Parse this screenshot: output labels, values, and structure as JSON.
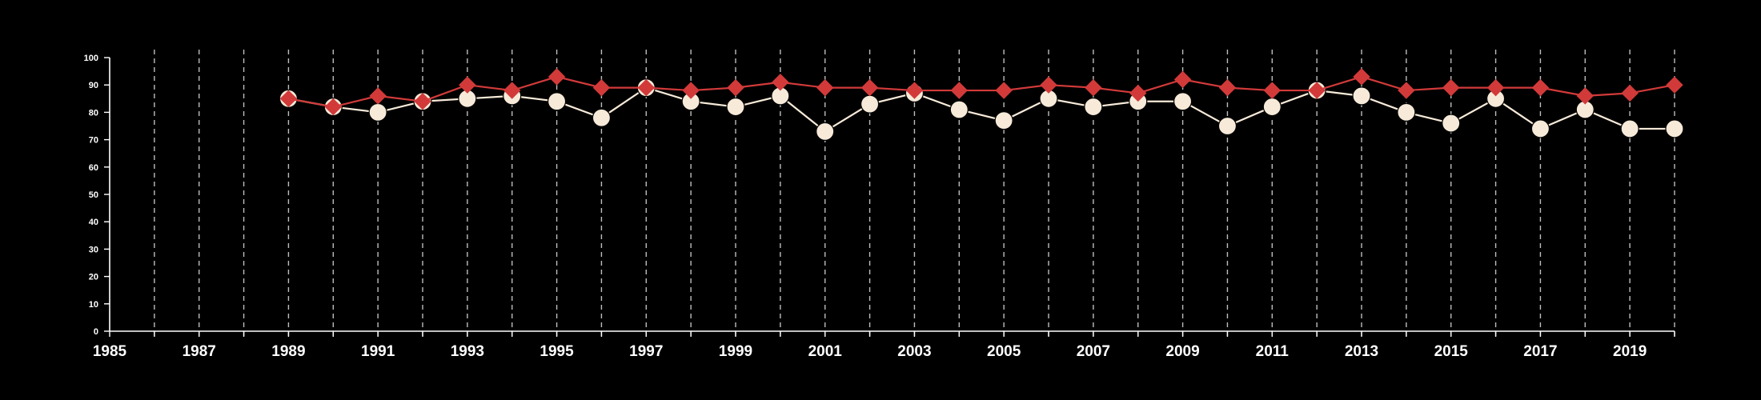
{
  "chart_data": {
    "type": "line",
    "title": "",
    "xlabel": "",
    "ylabel": "",
    "xlim": [
      1985,
      2020
    ],
    "ylim": [
      0,
      100
    ],
    "y_ticks": [
      0,
      10,
      20,
      30,
      40,
      50,
      60,
      70,
      80,
      90,
      100
    ],
    "x_tick_labels": [
      1985,
      1987,
      1989,
      1991,
      1993,
      1995,
      1997,
      1999,
      2001,
      2003,
      2005,
      2007,
      2009,
      2011,
      2013,
      2015,
      2017,
      2019
    ],
    "x_gridlines": [
      1986,
      1987,
      1988,
      1989,
      1990,
      1991,
      1992,
      1993,
      1994,
      1995,
      1996,
      1997,
      1998,
      1999,
      2000,
      2001,
      2002,
      2003,
      2004,
      2005,
      2006,
      2007,
      2008,
      2009,
      2010,
      2011,
      2012,
      2013,
      2014,
      2015,
      2016,
      2017,
      2018,
      2019,
      2020
    ],
    "grid": "vertical dashed",
    "legend": "none",
    "series": [
      {
        "color": "#d23a3a",
        "marker": "diamond",
        "x": [
          1989,
          1990,
          1991,
          1992,
          1993,
          1994,
          1995,
          1996,
          1997,
          1998,
          1999,
          2000,
          2001,
          2002,
          2003,
          2004,
          2005,
          2006,
          2007,
          2008,
          2009,
          2010,
          2011,
          2012,
          2013,
          2014,
          2015,
          2016,
          2017,
          2018,
          2019,
          2020
        ],
        "values": [
          85,
          82,
          86,
          84,
          90,
          88,
          93,
          89,
          89,
          88,
          89,
          91,
          89,
          89,
          88,
          88,
          88,
          90,
          89,
          87,
          92,
          89,
          88,
          88,
          93,
          88,
          89,
          89,
          89,
          86,
          87,
          90
        ]
      },
      {
        "color": "#f7ead9",
        "marker": "circle",
        "x": [
          1989,
          1990,
          1991,
          1992,
          1993,
          1994,
          1995,
          1996,
          1997,
          1998,
          1999,
          2000,
          2001,
          2002,
          2003,
          2004,
          2005,
          2006,
          2007,
          2008,
          2009,
          2010,
          2011,
          2012,
          2013,
          2014,
          2015,
          2016,
          2017,
          2018,
          2019,
          2020
        ],
        "values": [
          85,
          82,
          80,
          84,
          85,
          86,
          84,
          78,
          89,
          84,
          82,
          86,
          73,
          83,
          87,
          81,
          77,
          85,
          82,
          84,
          84,
          75,
          82,
          88,
          86,
          80,
          76,
          85,
          74,
          81,
          74,
          74
        ]
      }
    ]
  }
}
